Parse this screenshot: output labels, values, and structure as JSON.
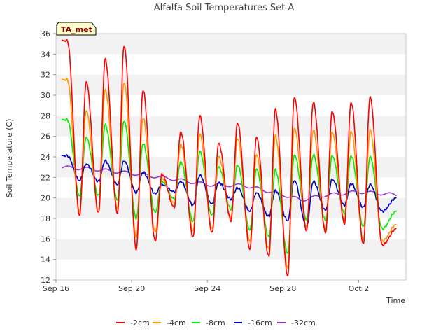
{
  "chart_data": {
    "type": "line",
    "title": "Alfalfa Soil Temperatures Set A",
    "xlabel": "Time",
    "ylabel": "Soil Temperature (C)",
    "badge": "TA_met",
    "x_range_days": [
      0,
      18.5
    ],
    "x_ticks": [
      {
        "label": "Sep 16",
        "day": 0
      },
      {
        "label": "Sep 20",
        "day": 4
      },
      {
        "label": "Sep 24",
        "day": 8
      },
      {
        "label": "Sep 28",
        "day": 12
      },
      {
        "label": "Oct 2",
        "day": 16
      }
    ],
    "ylim": [
      12,
      36
    ],
    "y_ticks": [
      12,
      14,
      16,
      18,
      20,
      22,
      24,
      26,
      28,
      30,
      32,
      34,
      36
    ],
    "grid": "horizontal bands",
    "legend_position": "bottom",
    "series": [
      {
        "name": "-2cm",
        "color": "#ff0000",
        "max": [
          35.3,
          31.3,
          33.5,
          34.8,
          30.5,
          22.3,
          26.4,
          28.0,
          25.3,
          27.3,
          25.9,
          28.6,
          29.8,
          29.3,
          28.4,
          29.3,
          29.8
        ],
        "min": [
          18.3,
          18.5,
          18.5,
          15.0,
          15.8,
          19.1,
          16.2,
          16.6,
          17.8,
          15.0,
          14.3,
          12.4,
          16.8,
          16.6,
          17.5,
          15.5,
          15.4,
          17.0
        ]
      },
      {
        "name": "-4cm",
        "color": "#ff9900",
        "max": [
          31.5,
          28.5,
          30.5,
          31.2,
          27.8,
          21.9,
          25.2,
          26.2,
          24.0,
          25.8,
          24.2,
          26.0,
          26.8,
          26.6,
          26.4,
          26.5,
          26.6
        ],
        "min": [
          18.7,
          18.8,
          19.0,
          16.2,
          16.7,
          19.5,
          16.8,
          17.0,
          18.1,
          15.8,
          15.0,
          13.2,
          17.1,
          16.9,
          17.8,
          15.9,
          15.8,
          17.4
        ]
      },
      {
        "name": "-8cm",
        "color": "#00ee00",
        "max": [
          27.6,
          25.9,
          27.1,
          27.5,
          25.3,
          21.6,
          23.5,
          24.5,
          23.0,
          23.2,
          22.8,
          22.7,
          24.2,
          24.2,
          24.1,
          24.1,
          24.0
        ],
        "min": [
          20.2,
          20.2,
          19.8,
          18.0,
          18.6,
          19.9,
          17.7,
          18.3,
          18.9,
          16.9,
          16.2,
          14.6,
          17.9,
          17.8,
          18.5,
          17.2,
          17.0,
          18.7
        ]
      },
      {
        "name": "-16cm",
        "color": "#0000cc",
        "max": [
          24.1,
          23.3,
          23.6,
          23.6,
          22.5,
          21.3,
          21.6,
          22.2,
          21.5,
          21.0,
          20.5,
          20.7,
          21.7,
          21.6,
          21.8,
          21.4,
          21.3
        ],
        "min": [
          21.7,
          21.6,
          21.3,
          20.5,
          20.4,
          20.6,
          19.3,
          19.4,
          19.9,
          18.7,
          18.2,
          17.8,
          17.2,
          18.8,
          19.3,
          19.1,
          18.7,
          20.0
        ]
      },
      {
        "name": "-32cm",
        "color": "#9933cc",
        "knots_day": [
          0.3,
          2,
          4,
          6,
          8,
          10,
          12,
          13,
          14,
          16,
          18.0
        ],
        "knots_value": [
          23.0,
          22.8,
          22.4,
          21.9,
          21.3,
          21.2,
          20.3,
          19.8,
          20.2,
          20.6,
          20.3
        ]
      }
    ]
  }
}
